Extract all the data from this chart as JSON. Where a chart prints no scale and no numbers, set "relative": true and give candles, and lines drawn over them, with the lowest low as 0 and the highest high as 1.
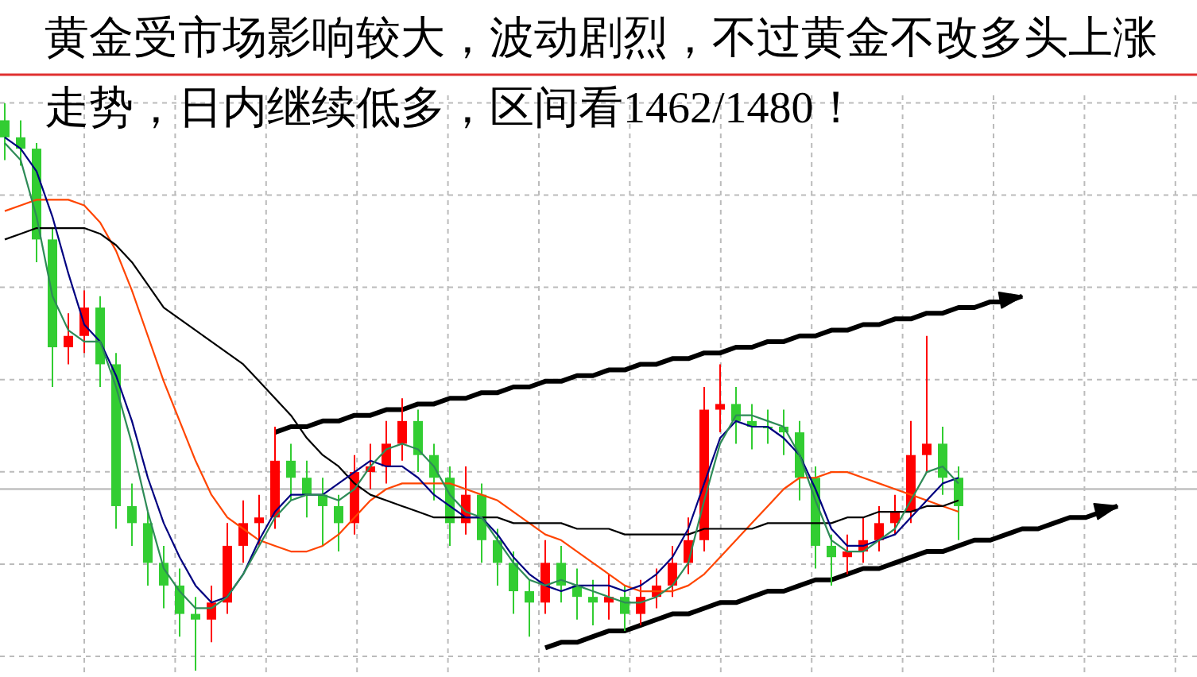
{
  "chart_data": {
    "type": "candlestick",
    "relative": true,
    "title": "黄金受市场影响较大，波动剧烈，不过黄金不改多头上涨走势，日内继续低多，区间看1462/1480！",
    "grid": true,
    "categories": [
      null,
      null,
      null,
      null,
      null,
      null,
      null,
      null,
      null,
      null,
      null,
      null,
      null,
      null,
      null,
      null,
      null,
      null,
      null,
      null,
      null,
      null,
      null,
      null,
      null,
      null,
      null,
      null,
      null,
      null,
      null,
      null,
      null,
      null,
      null,
      null,
      null,
      null,
      null,
      null,
      null,
      null,
      null,
      null,
      null,
      null,
      null,
      null,
      null,
      null,
      null,
      null,
      null,
      null,
      null,
      null,
      null,
      null,
      null,
      null,
      null,
      null,
      null,
      null,
      null,
      null,
      null,
      null,
      null,
      null,
      null,
      null
    ],
    "ohlc": [
      [
        0.97,
        1.0,
        0.9,
        0.94
      ],
      [
        0.94,
        0.97,
        0.89,
        0.92
      ],
      [
        0.92,
        0.93,
        0.72,
        0.76
      ],
      [
        0.76,
        0.78,
        0.5,
        0.57
      ],
      [
        0.57,
        0.63,
        0.54,
        0.59
      ],
      [
        0.59,
        0.67,
        0.56,
        0.64
      ],
      [
        0.64,
        0.66,
        0.5,
        0.54
      ],
      [
        0.54,
        0.56,
        0.25,
        0.29
      ],
      [
        0.29,
        0.33,
        0.22,
        0.26
      ],
      [
        0.26,
        0.28,
        0.15,
        0.19
      ],
      [
        0.19,
        0.22,
        0.11,
        0.15
      ],
      [
        0.15,
        0.18,
        0.06,
        0.1
      ],
      [
        0.1,
        0.13,
        0.0,
        0.09
      ],
      [
        0.09,
        0.15,
        0.05,
        0.12
      ],
      [
        0.12,
        0.26,
        0.1,
        0.22
      ],
      [
        0.22,
        0.3,
        0.19,
        0.26
      ],
      [
        0.26,
        0.31,
        0.22,
        0.27
      ],
      [
        0.27,
        0.43,
        0.25,
        0.37
      ],
      [
        0.37,
        0.4,
        0.3,
        0.34
      ],
      [
        0.34,
        0.37,
        0.27,
        0.31
      ],
      [
        0.31,
        0.34,
        0.22,
        0.29
      ],
      [
        0.29,
        0.31,
        0.21,
        0.26
      ],
      [
        0.26,
        0.38,
        0.24,
        0.35
      ],
      [
        0.35,
        0.4,
        0.32,
        0.36
      ],
      [
        0.36,
        0.44,
        0.33,
        0.4
      ],
      [
        0.4,
        0.48,
        0.37,
        0.44
      ],
      [
        0.44,
        0.46,
        0.35,
        0.38
      ],
      [
        0.38,
        0.4,
        0.3,
        0.34
      ],
      [
        0.34,
        0.36,
        0.22,
        0.26
      ],
      [
        0.26,
        0.36,
        0.24,
        0.31
      ],
      [
        0.31,
        0.33,
        0.19,
        0.23
      ],
      [
        0.23,
        0.25,
        0.15,
        0.19
      ],
      [
        0.19,
        0.21,
        0.1,
        0.14
      ],
      [
        0.14,
        0.16,
        0.06,
        0.12
      ],
      [
        0.12,
        0.23,
        0.1,
        0.19
      ],
      [
        0.19,
        0.22,
        0.12,
        0.15
      ],
      [
        0.15,
        0.18,
        0.09,
        0.13
      ],
      [
        0.13,
        0.16,
        0.08,
        0.12
      ],
      [
        0.12,
        0.17,
        0.09,
        0.13
      ],
      [
        0.13,
        0.15,
        0.07,
        0.1
      ],
      [
        0.1,
        0.16,
        0.08,
        0.13
      ],
      [
        0.13,
        0.18,
        0.11,
        0.15
      ],
      [
        0.15,
        0.22,
        0.13,
        0.19
      ],
      [
        0.19,
        0.27,
        0.17,
        0.23
      ],
      [
        0.23,
        0.5,
        0.21,
        0.46
      ],
      [
        0.46,
        0.54,
        0.42,
        0.47
      ],
      [
        0.47,
        0.5,
        0.4,
        0.44
      ],
      [
        0.44,
        0.47,
        0.39,
        0.43
      ],
      [
        0.43,
        0.46,
        0.4,
        0.43
      ],
      [
        0.43,
        0.46,
        0.38,
        0.42
      ],
      [
        0.42,
        0.44,
        0.3,
        0.34
      ],
      [
        0.34,
        0.36,
        0.18,
        0.22
      ],
      [
        0.22,
        0.24,
        0.15,
        0.2
      ],
      [
        0.2,
        0.24,
        0.17,
        0.21
      ],
      [
        0.21,
        0.27,
        0.19,
        0.23
      ],
      [
        0.23,
        0.29,
        0.21,
        0.26
      ],
      [
        0.26,
        0.31,
        0.24,
        0.28
      ],
      [
        0.28,
        0.44,
        0.26,
        0.38
      ],
      [
        0.38,
        0.59,
        0.35,
        0.4
      ],
      [
        0.4,
        0.43,
        0.31,
        0.34
      ],
      [
        0.34,
        0.36,
        0.23,
        0.29
      ],
      null,
      null,
      null,
      null,
      null,
      null,
      null,
      null,
      null,
      null,
      null
    ],
    "colors": [
      "#32cd32",
      "#32cd32",
      "#32cd32",
      "#32cd32",
      "#ff0000",
      "#ff0000",
      "#32cd32",
      "#32cd32",
      "#32cd32",
      "#32cd32",
      "#32cd32",
      "#32cd32",
      "#32cd32",
      "#ff0000",
      "#ff0000",
      "#ff0000",
      "#ff0000",
      "#ff0000",
      "#32cd32",
      "#32cd32",
      "#32cd32",
      "#32cd32",
      "#ff0000",
      "#ff0000",
      "#ff0000",
      "#ff0000",
      "#32cd32",
      "#32cd32",
      "#32cd32",
      "#ff0000",
      "#32cd32",
      "#32cd32",
      "#32cd32",
      "#32cd32",
      "#ff0000",
      "#32cd32",
      "#32cd32",
      "#32cd32",
      "#ff0000",
      "#32cd32",
      "#ff0000",
      "#ff0000",
      "#ff0000",
      "#ff0000",
      "#ff0000",
      "#ff0000",
      "#32cd32",
      "#32cd32",
      "#32cd32",
      "#32cd32",
      "#32cd32",
      "#32cd32",
      "#32cd32",
      "#ff0000",
      "#ff0000",
      "#ff0000",
      "#ff0000",
      "#ff0000",
      "#ff0000",
      "#32cd32",
      "#32cd32",
      null,
      null,
      null,
      null,
      null,
      null,
      null,
      null,
      null,
      null,
      null
    ],
    "series": [
      {
        "type": "line",
        "color": "#ff4500",
        "values": [
          0.81,
          0.82,
          0.83,
          0.83,
          0.83,
          0.82,
          0.79,
          0.74,
          0.67,
          0.59,
          0.51,
          0.44,
          0.37,
          0.31,
          0.27,
          0.25,
          0.23,
          0.22,
          0.21,
          0.21,
          0.22,
          0.24,
          0.27,
          0.3,
          0.32,
          0.33,
          0.33,
          0.33,
          0.33,
          0.32,
          0.31,
          0.3,
          0.28,
          0.26,
          0.24,
          0.23,
          0.21,
          0.19,
          0.17,
          0.15,
          0.14,
          0.14,
          0.14,
          0.15,
          0.17,
          0.2,
          0.23,
          0.26,
          0.29,
          0.32,
          0.34,
          0.34,
          0.35,
          0.35,
          0.34,
          0.33,
          0.32,
          0.31,
          0.3,
          0.29,
          0.28,
          null,
          null,
          null,
          null,
          null,
          null,
          null,
          null,
          null,
          null,
          null
        ]
      },
      {
        "type": "line",
        "color": "#000000",
        "values": [
          0.76,
          0.77,
          0.78,
          0.78,
          0.78,
          0.78,
          0.77,
          0.75,
          0.72,
          0.68,
          0.64,
          0.62,
          0.6,
          0.58,
          0.56,
          0.54,
          0.51,
          0.48,
          0.45,
          0.41,
          0.38,
          0.36,
          0.33,
          0.31,
          0.3,
          0.29,
          0.28,
          0.27,
          0.27,
          0.27,
          0.27,
          0.27,
          0.26,
          0.26,
          0.26,
          0.26,
          0.25,
          0.25,
          0.25,
          0.24,
          0.24,
          0.24,
          0.24,
          0.24,
          0.25,
          0.25,
          0.25,
          0.25,
          0.26,
          0.26,
          0.26,
          0.26,
          0.26,
          0.27,
          0.27,
          0.28,
          0.28,
          0.28,
          0.29,
          0.29,
          0.3,
          null,
          null,
          null,
          null,
          null,
          null,
          null,
          null,
          null,
          null,
          null
        ]
      },
      {
        "type": "line",
        "color": "#000080",
        "values": [
          0.94,
          0.92,
          0.88,
          0.8,
          0.7,
          0.61,
          0.58,
          0.52,
          0.44,
          0.34,
          0.26,
          0.2,
          0.15,
          0.12,
          0.13,
          0.17,
          0.23,
          0.28,
          0.31,
          0.31,
          0.31,
          0.33,
          0.35,
          0.37,
          0.36,
          0.36,
          0.34,
          0.31,
          0.29,
          0.27,
          0.27,
          0.24,
          0.2,
          0.17,
          0.15,
          0.14,
          0.15,
          0.15,
          0.15,
          0.14,
          0.15,
          0.17,
          0.2,
          0.25,
          0.33,
          0.41,
          0.44,
          0.43,
          0.43,
          0.41,
          0.38,
          0.32,
          0.25,
          0.22,
          0.22,
          0.23,
          0.24,
          0.27,
          0.3,
          0.33,
          0.34,
          null,
          null,
          null,
          null,
          null,
          null,
          null,
          null,
          null,
          null,
          null
        ]
      },
      {
        "type": "line",
        "color": "#2e8b57",
        "values": [
          0.93,
          0.9,
          0.8,
          0.66,
          0.6,
          0.58,
          0.58,
          0.5,
          0.4,
          0.28,
          0.18,
          0.14,
          0.11,
          0.11,
          0.13,
          0.17,
          0.22,
          0.27,
          0.3,
          0.31,
          0.31,
          0.3,
          0.32,
          0.36,
          0.39,
          0.4,
          0.39,
          0.36,
          0.31,
          0.28,
          0.27,
          0.23,
          0.19,
          0.16,
          0.15,
          0.16,
          0.15,
          0.14,
          0.13,
          0.12,
          0.12,
          0.13,
          0.15,
          0.19,
          0.3,
          0.4,
          0.45,
          0.45,
          0.44,
          0.43,
          0.38,
          0.3,
          0.23,
          0.21,
          0.21,
          0.23,
          0.25,
          0.3,
          0.35,
          0.36,
          0.33,
          null,
          null,
          null,
          null,
          null,
          null,
          null,
          null,
          null,
          null,
          null
        ]
      },
      {
        "type": "line",
        "color": "#000000",
        "values": [
          null,
          null,
          null,
          null,
          null,
          null,
          null,
          null,
          null,
          null,
          null,
          null,
          null,
          null,
          null,
          null,
          null,
          0.42,
          0.43,
          0.43,
          0.44,
          0.44,
          0.45,
          0.45,
          0.46,
          0.46,
          0.47,
          0.47,
          0.48,
          0.48,
          0.49,
          0.49,
          0.5,
          0.5,
          0.51,
          0.51,
          0.52,
          0.52,
          0.53,
          0.53,
          0.54,
          0.54,
          0.55,
          0.55,
          0.56,
          0.56,
          0.57,
          0.57,
          0.58,
          0.58,
          0.59,
          0.59,
          0.6,
          0.6,
          0.61,
          0.61,
          0.62,
          0.62,
          0.63,
          0.63,
          0.64,
          0.64,
          0.65,
          0.65,
          0.66,
          null,
          null,
          null,
          null,
          null,
          null,
          null
        ]
      },
      {
        "type": "line",
        "color": "#000000",
        "values": [
          null,
          null,
          null,
          null,
          null,
          null,
          null,
          null,
          null,
          null,
          null,
          null,
          null,
          null,
          null,
          null,
          null,
          null,
          null,
          null,
          null,
          null,
          null,
          null,
          null,
          null,
          null,
          null,
          null,
          null,
          null,
          null,
          null,
          null,
          0.04,
          0.05,
          0.05,
          0.06,
          0.07,
          0.07,
          0.08,
          0.09,
          0.1,
          0.1,
          0.11,
          0.12,
          0.12,
          0.13,
          0.14,
          0.14,
          0.15,
          0.16,
          0.16,
          0.17,
          0.18,
          0.18,
          0.19,
          0.2,
          0.21,
          0.21,
          0.22,
          0.23,
          0.23,
          0.24,
          0.25,
          0.25,
          0.26,
          0.27,
          0.27,
          0.28,
          0.29,
          null
        ]
      }
    ],
    "ref_lines": [
      {
        "axis": "y",
        "value": 0.32,
        "color": "#c0c0c0"
      }
    ]
  }
}
